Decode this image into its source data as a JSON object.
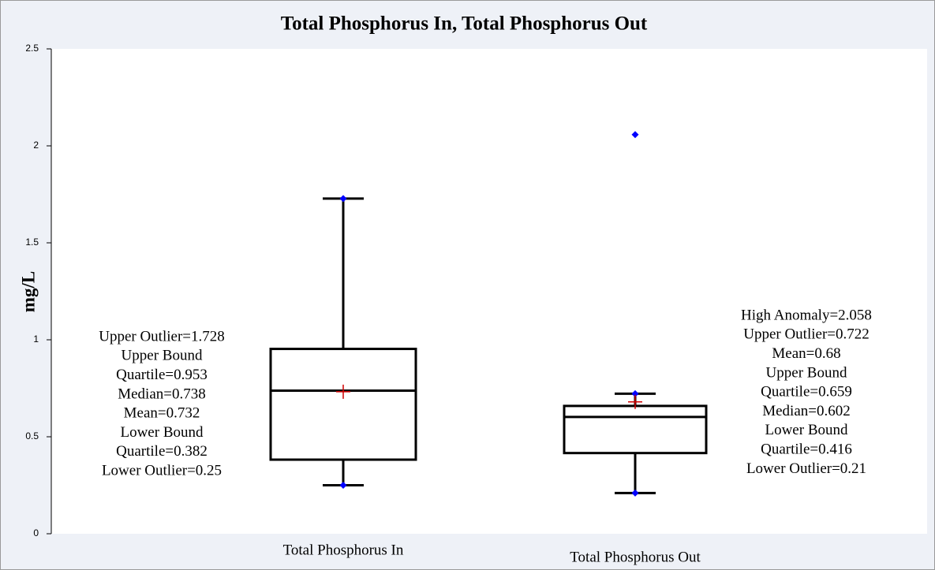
{
  "chart_data": {
    "type": "box",
    "title": "Total Phosphorus In, Total Phosphorus Out",
    "y_label": "mg/L",
    "ylim": [
      0,
      2.5
    ],
    "yticks": [
      0,
      0.5,
      1,
      1.5,
      2,
      2.5
    ],
    "box_color": "#000000",
    "mean_color": "#d00000",
    "point_color": "#0000ff",
    "categories": [
      "Total Phosphorus In",
      "Total Phosphorus Out"
    ],
    "boxes": [
      {
        "whisker_low": 0.25,
        "q1": 0.382,
        "median": 0.738,
        "q3": 0.953,
        "whisker_high": 1.728,
        "mean": 0.732,
        "outliers": [],
        "annotation": [
          "Upper Outlier=1.728",
          "Upper Bound",
          "Quartile=0.953",
          "Median=0.738",
          "Mean=0.732",
          "Lower Bound",
          "Quartile=0.382",
          "Lower Outlier=0.25"
        ]
      },
      {
        "whisker_low": 0.21,
        "q1": 0.416,
        "median": 0.602,
        "q3": 0.659,
        "whisker_high": 0.722,
        "mean": 0.68,
        "outliers": [
          2.058
        ],
        "annotation": [
          "High Anomaly=2.058",
          "Upper Outlier=0.722",
          "Mean=0.68",
          "Upper Bound",
          "Quartile=0.659",
          "Median=0.602",
          "Lower Bound",
          "Quartile=0.416",
          "Lower Outlier=0.21"
        ]
      }
    ]
  }
}
